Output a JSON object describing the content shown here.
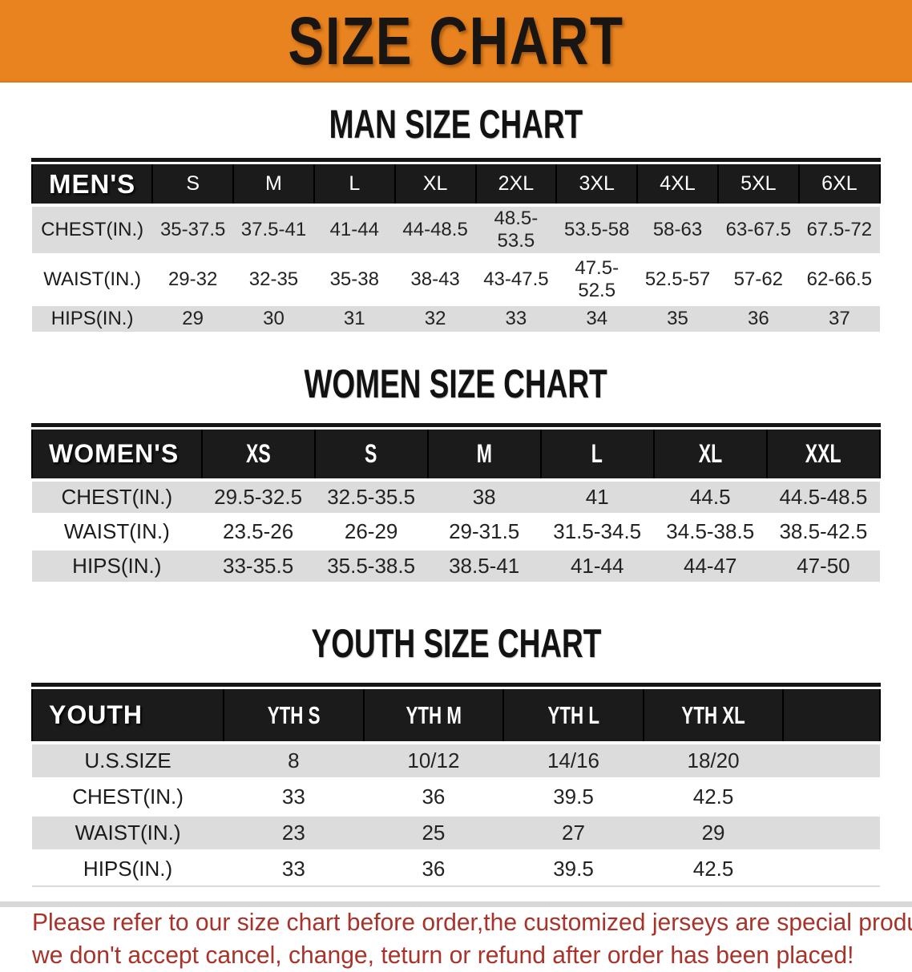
{
  "banner": {
    "title": "SIZE CHART"
  },
  "colors": {
    "banner_bg": "#E8831F",
    "table_header_bg": "#1B1B1B",
    "row_stripe": "#DCDCDC",
    "disclaimer_red": "#A8332B"
  },
  "sections": [
    {
      "id": "men",
      "heading": "MAN SIZE CHART",
      "header_label": "MEN'S",
      "sizes": [
        "S",
        "M",
        "L",
        "XL",
        "2XL",
        "3XL",
        "4XL",
        "5XL",
        "6XL"
      ],
      "rows": [
        {
          "label": "CHEST(IN.)",
          "values": [
            "35-37.5",
            "37.5-41",
            "41-44",
            "44-48.5",
            "48.5-53.5",
            "53.5-58",
            "58-63",
            "63-67.5",
            "67.5-72"
          ]
        },
        {
          "label": "WAIST(IN.)",
          "values": [
            "29-32",
            "32-35",
            "35-38",
            "38-43",
            "43-47.5",
            "47.5-52.5",
            "52.5-57",
            "57-62",
            "62-66.5"
          ]
        },
        {
          "label": "HIPS(IN.)",
          "values": [
            "29",
            "30",
            "31",
            "32",
            "33",
            "34",
            "35",
            "36",
            "37"
          ]
        }
      ]
    },
    {
      "id": "women",
      "heading": "WOMEN SIZE CHART",
      "header_label": "WOMEN'S",
      "sizes": [
        "XS",
        "S",
        "M",
        "L",
        "XL",
        "XXL"
      ],
      "rows": [
        {
          "label": "CHEST(IN.)",
          "values": [
            "29.5-32.5",
            "32.5-35.5",
            "38",
            "41",
            "44.5",
            "44.5-48.5"
          ]
        },
        {
          "label": "WAIST(IN.)",
          "values": [
            "23.5-26",
            "26-29",
            "29-31.5",
            "31.5-34.5",
            "34.5-38.5",
            "38.5-42.5"
          ]
        },
        {
          "label": "HIPS(IN.)",
          "values": [
            "33-35.5",
            "35.5-38.5",
            "38.5-41",
            "41-44",
            "44-47",
            "47-50"
          ]
        }
      ]
    },
    {
      "id": "youth",
      "heading": "YOUTH SIZE CHART",
      "header_label": "YOUTH",
      "sizes": [
        "YTH S",
        "YTH M",
        "YTH L",
        "YTH XL"
      ],
      "rows": [
        {
          "label": "U.S.SIZE",
          "values": [
            "8",
            "10/12",
            "14/16",
            "18/20"
          ]
        },
        {
          "label": "CHEST(IN.)",
          "values": [
            "33",
            "36",
            "39.5",
            "42.5"
          ]
        },
        {
          "label": "WAIST(IN.)",
          "values": [
            "23",
            "25",
            "27",
            "29"
          ]
        },
        {
          "label": "HIPS(IN.)",
          "values": [
            "33",
            "36",
            "39.5",
            "42.5"
          ]
        }
      ]
    }
  ],
  "disclaimer": {
    "lines": [
      "Please refer to our size chart before order,the customized jerseys are special products,",
      "we don't accept cancel, change, teturn or refund after order has been placed!"
    ]
  }
}
